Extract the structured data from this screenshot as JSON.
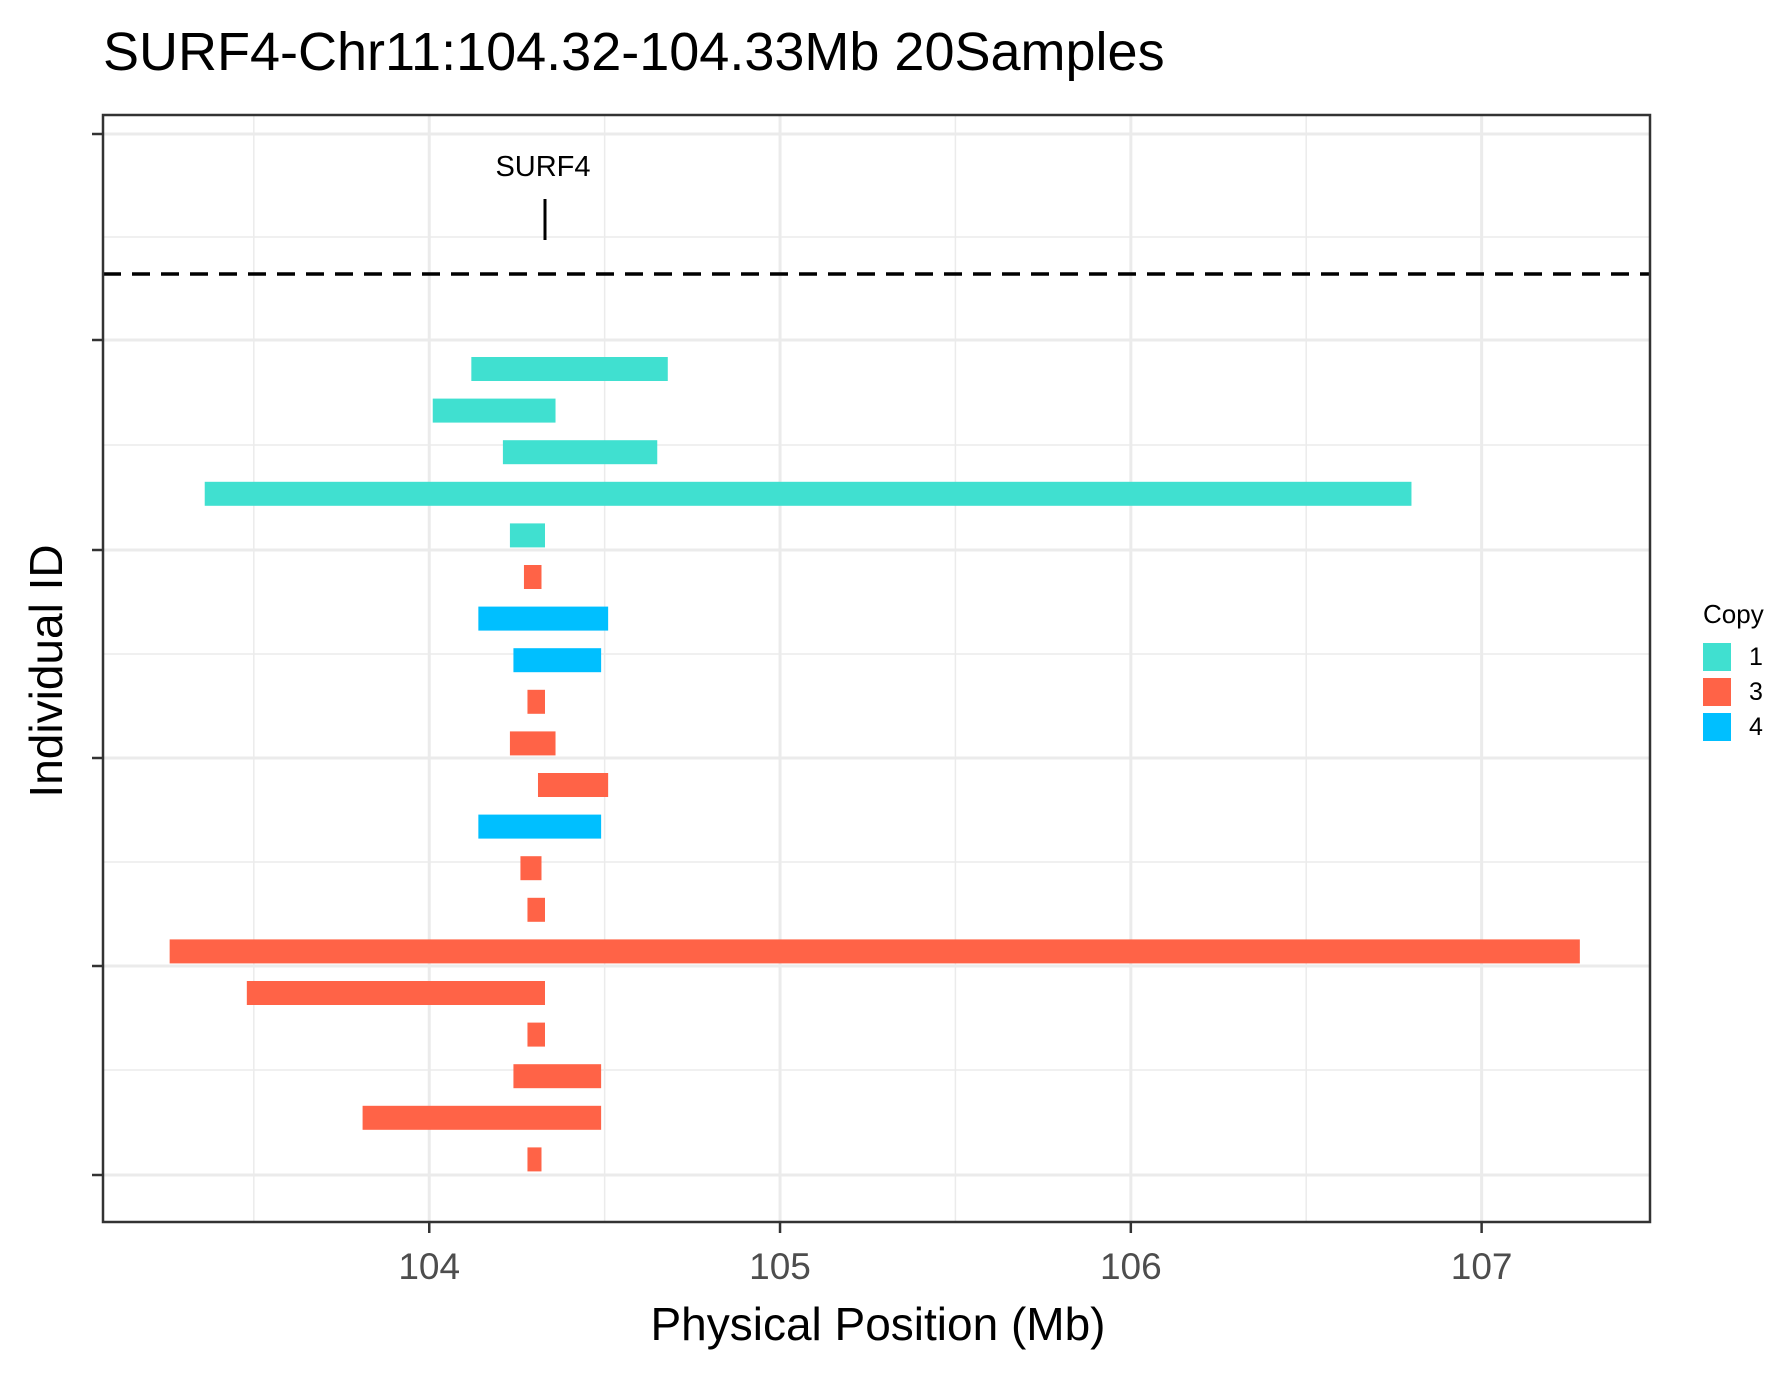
{
  "chart_data": {
    "type": "bar",
    "orientation": "horizontal-segments",
    "title": "SURF4-Chr11:104.32-104.33Mb 20Samples",
    "xlabel": "Physical Position (Mb)",
    "ylabel": "Individual ID",
    "xlim": [
      103.07,
      107.48
    ],
    "x_ticks": [
      104,
      105,
      106,
      107
    ],
    "x_tick_labels": [
      "104",
      "105",
      "106",
      "107"
    ],
    "grid": true,
    "gene": {
      "label": "SURF4",
      "position": 104.33
    },
    "legend": {
      "title": "Copy",
      "position": "right",
      "entries": [
        {
          "label": "1",
          "color": "#40E0D0"
        },
        {
          "label": "3",
          "color": "#FF6347"
        },
        {
          "label": "4",
          "color": "#00BFFF"
        }
      ]
    },
    "segments": [
      {
        "start": 104.12,
        "end": 104.68,
        "copy": "1"
      },
      {
        "start": 104.01,
        "end": 104.36,
        "copy": "1"
      },
      {
        "start": 104.21,
        "end": 104.65,
        "copy": "1"
      },
      {
        "start": 103.36,
        "end": 106.8,
        "copy": "1"
      },
      {
        "start": 104.23,
        "end": 104.33,
        "copy": "1"
      },
      {
        "start": 104.27,
        "end": 104.32,
        "copy": "3"
      },
      {
        "start": 104.14,
        "end": 104.51,
        "copy": "4"
      },
      {
        "start": 104.24,
        "end": 104.49,
        "copy": "4"
      },
      {
        "start": 104.28,
        "end": 104.33,
        "copy": "3"
      },
      {
        "start": 104.23,
        "end": 104.36,
        "copy": "3"
      },
      {
        "start": 104.31,
        "end": 104.51,
        "copy": "3"
      },
      {
        "start": 104.14,
        "end": 104.49,
        "copy": "4"
      },
      {
        "start": 104.26,
        "end": 104.32,
        "copy": "3"
      },
      {
        "start": 104.28,
        "end": 104.33,
        "copy": "3"
      },
      {
        "start": 103.26,
        "end": 107.28,
        "copy": "3"
      },
      {
        "start": 103.48,
        "end": 104.33,
        "copy": "3"
      },
      {
        "start": 104.28,
        "end": 104.33,
        "copy": "3"
      },
      {
        "start": 104.24,
        "end": 104.49,
        "copy": "3"
      },
      {
        "start": 103.81,
        "end": 104.49,
        "copy": "3"
      },
      {
        "start": 104.28,
        "end": 104.32,
        "copy": "3"
      }
    ]
  }
}
